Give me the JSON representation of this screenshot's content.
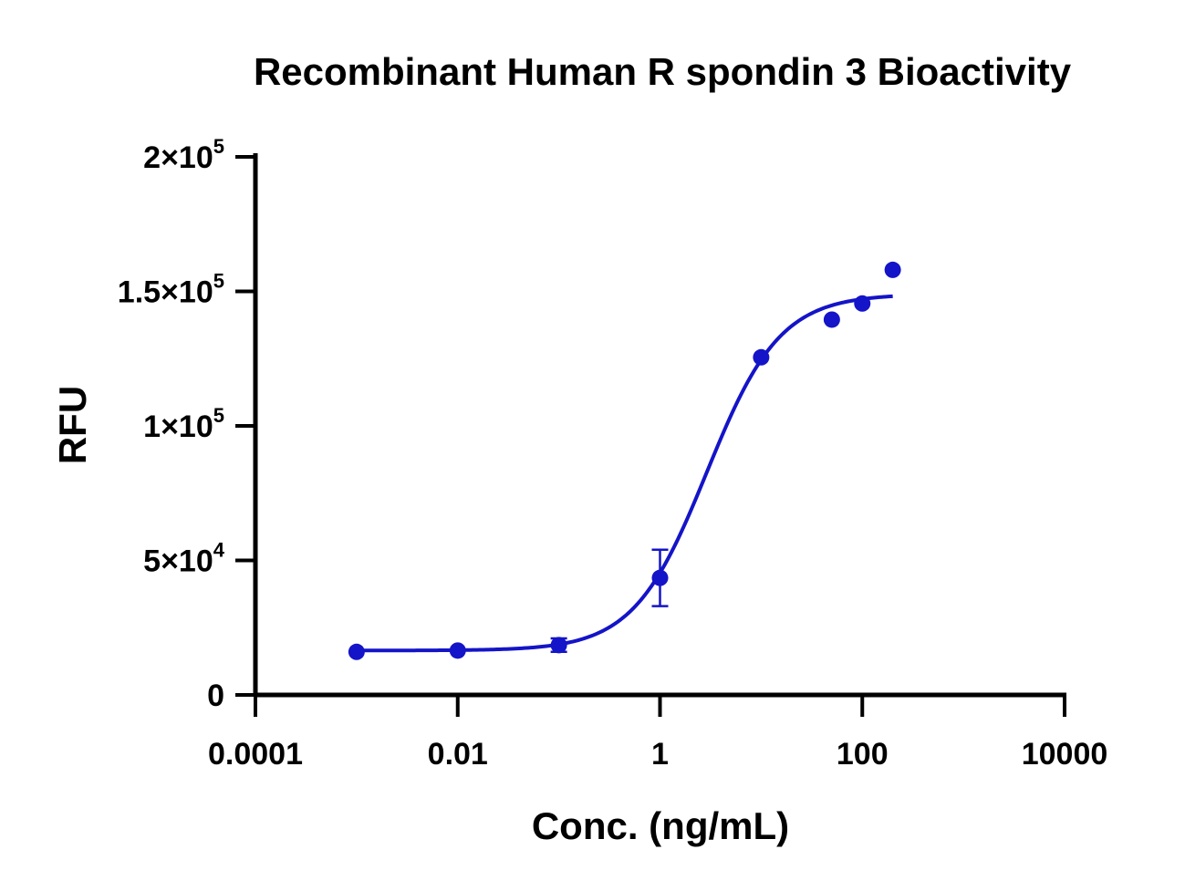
{
  "chart_data": {
    "type": "scatter",
    "title": "Recombinant Human R spondin 3 Bioactivity",
    "xlabel": "Conc. (ng/mL)",
    "ylabel": "RFU",
    "x_scale": "log",
    "xlim": [
      0.0001,
      10000
    ],
    "ylim": [
      0,
      200000
    ],
    "x_ticks": [
      {
        "value": 0.0001,
        "label": "0.0001"
      },
      {
        "value": 0.01,
        "label": "0.01"
      },
      {
        "value": 1,
        "label": "1"
      },
      {
        "value": 100,
        "label": "100"
      },
      {
        "value": 10000,
        "label": "10000"
      }
    ],
    "y_ticks": [
      {
        "value": 0,
        "mantissa": "0",
        "exp": ""
      },
      {
        "value": 50000,
        "mantissa": "5×10",
        "exp": "4"
      },
      {
        "value": 100000,
        "mantissa": "1×10",
        "exp": "5"
      },
      {
        "value": 150000,
        "mantissa": "1.5×10",
        "exp": "5"
      },
      {
        "value": 200000,
        "mantissa": "2×10",
        "exp": "5"
      }
    ],
    "points": [
      {
        "x": 0.001,
        "y": 16000,
        "err": 0
      },
      {
        "x": 0.01,
        "y": 16500,
        "err": 0
      },
      {
        "x": 0.1,
        "y": 18500,
        "err": 2500
      },
      {
        "x": 1,
        "y": 43500,
        "err": 10500
      },
      {
        "x": 10,
        "y": 125500,
        "err": 0
      },
      {
        "x": 50,
        "y": 139500,
        "err": 0
      },
      {
        "x": 100,
        "y": 145500,
        "err": 0
      },
      {
        "x": 200,
        "y": 158000,
        "err": 0
      }
    ],
    "fit": {
      "model": "4PL",
      "bottom": 16500,
      "top": 149000,
      "ec50": 2.9,
      "hill": 1.2,
      "x_range": [
        0.001,
        200
      ]
    },
    "grid": false,
    "colors": {
      "series": "#1414c8",
      "axis": "#000000"
    }
  }
}
